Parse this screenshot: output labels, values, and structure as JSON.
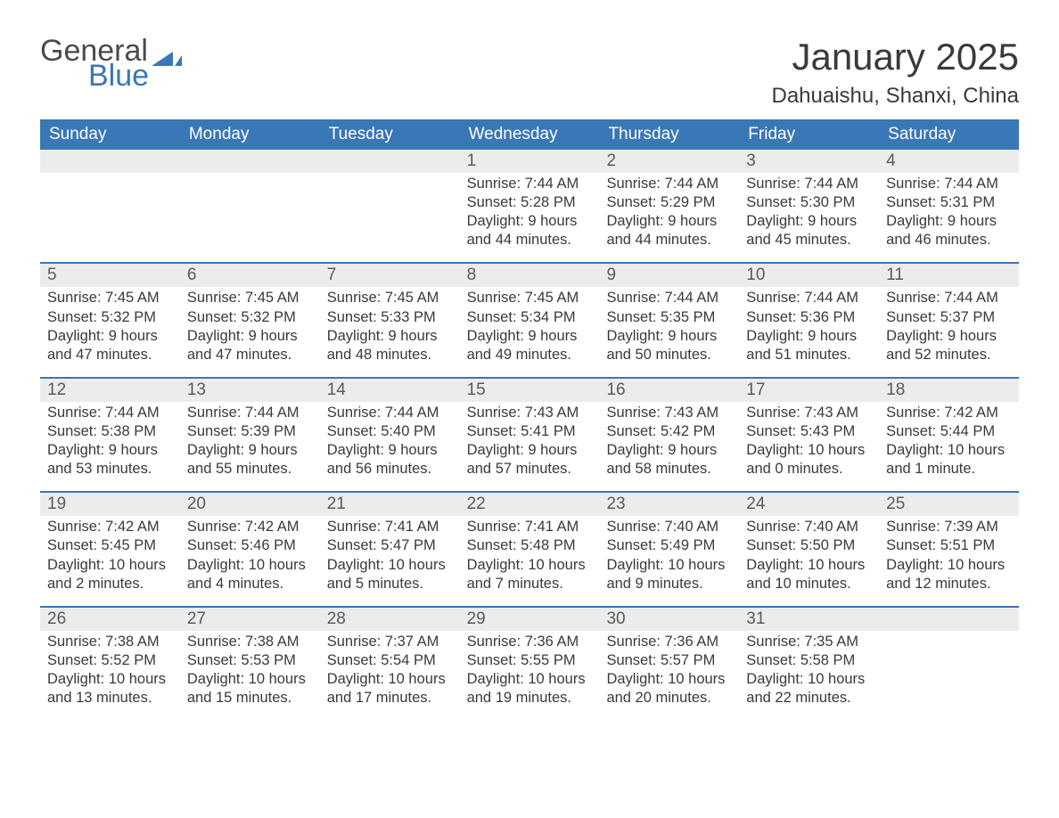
{
  "colors": {
    "brand_blue": "#3a77b6",
    "header_bg": "#3a77b6",
    "header_text": "#ffffff",
    "daynum_bg": "#ececec",
    "text": "#3a3a3a",
    "page_bg": "#ffffff"
  },
  "typography": {
    "title_fontsize": 42,
    "location_fontsize": 24,
    "weekday_fontsize": 19,
    "daynum_fontsize": 19,
    "body_fontsize": 16.5,
    "logo_fontsize": 34
  },
  "logo": {
    "line1": "General",
    "line2": "Blue"
  },
  "title": "January 2025",
  "location": "Dahuaishu, Shanxi, China",
  "weekdays": [
    "Sunday",
    "Monday",
    "Tuesday",
    "Wednesday",
    "Thursday",
    "Friday",
    "Saturday"
  ],
  "labels": {
    "sunrise": "Sunrise: ",
    "sunset": "Sunset: ",
    "daylight": "Daylight: "
  },
  "weeks": [
    [
      null,
      null,
      null,
      {
        "n": "1",
        "sr": "7:44 AM",
        "ss": "5:28 PM",
        "dl": "9 hours and 44 minutes."
      },
      {
        "n": "2",
        "sr": "7:44 AM",
        "ss": "5:29 PM",
        "dl": "9 hours and 44 minutes."
      },
      {
        "n": "3",
        "sr": "7:44 AM",
        "ss": "5:30 PM",
        "dl": "9 hours and 45 minutes."
      },
      {
        "n": "4",
        "sr": "7:44 AM",
        "ss": "5:31 PM",
        "dl": "9 hours and 46 minutes."
      }
    ],
    [
      {
        "n": "5",
        "sr": "7:45 AM",
        "ss": "5:32 PM",
        "dl": "9 hours and 47 minutes."
      },
      {
        "n": "6",
        "sr": "7:45 AM",
        "ss": "5:32 PM",
        "dl": "9 hours and 47 minutes."
      },
      {
        "n": "7",
        "sr": "7:45 AM",
        "ss": "5:33 PM",
        "dl": "9 hours and 48 minutes."
      },
      {
        "n": "8",
        "sr": "7:45 AM",
        "ss": "5:34 PM",
        "dl": "9 hours and 49 minutes."
      },
      {
        "n": "9",
        "sr": "7:44 AM",
        "ss": "5:35 PM",
        "dl": "9 hours and 50 minutes."
      },
      {
        "n": "10",
        "sr": "7:44 AM",
        "ss": "5:36 PM",
        "dl": "9 hours and 51 minutes."
      },
      {
        "n": "11",
        "sr": "7:44 AM",
        "ss": "5:37 PM",
        "dl": "9 hours and 52 minutes."
      }
    ],
    [
      {
        "n": "12",
        "sr": "7:44 AM",
        "ss": "5:38 PM",
        "dl": "9 hours and 53 minutes."
      },
      {
        "n": "13",
        "sr": "7:44 AM",
        "ss": "5:39 PM",
        "dl": "9 hours and 55 minutes."
      },
      {
        "n": "14",
        "sr": "7:44 AM",
        "ss": "5:40 PM",
        "dl": "9 hours and 56 minutes."
      },
      {
        "n": "15",
        "sr": "7:43 AM",
        "ss": "5:41 PM",
        "dl": "9 hours and 57 minutes."
      },
      {
        "n": "16",
        "sr": "7:43 AM",
        "ss": "5:42 PM",
        "dl": "9 hours and 58 minutes."
      },
      {
        "n": "17",
        "sr": "7:43 AM",
        "ss": "5:43 PM",
        "dl": "10 hours and 0 minutes."
      },
      {
        "n": "18",
        "sr": "7:42 AM",
        "ss": "5:44 PM",
        "dl": "10 hours and 1 minute."
      }
    ],
    [
      {
        "n": "19",
        "sr": "7:42 AM",
        "ss": "5:45 PM",
        "dl": "10 hours and 2 minutes."
      },
      {
        "n": "20",
        "sr": "7:42 AM",
        "ss": "5:46 PM",
        "dl": "10 hours and 4 minutes."
      },
      {
        "n": "21",
        "sr": "7:41 AM",
        "ss": "5:47 PM",
        "dl": "10 hours and 5 minutes."
      },
      {
        "n": "22",
        "sr": "7:41 AM",
        "ss": "5:48 PM",
        "dl": "10 hours and 7 minutes."
      },
      {
        "n": "23",
        "sr": "7:40 AM",
        "ss": "5:49 PM",
        "dl": "10 hours and 9 minutes."
      },
      {
        "n": "24",
        "sr": "7:40 AM",
        "ss": "5:50 PM",
        "dl": "10 hours and 10 minutes."
      },
      {
        "n": "25",
        "sr": "7:39 AM",
        "ss": "5:51 PM",
        "dl": "10 hours and 12 minutes."
      }
    ],
    [
      {
        "n": "26",
        "sr": "7:38 AM",
        "ss": "5:52 PM",
        "dl": "10 hours and 13 minutes."
      },
      {
        "n": "27",
        "sr": "7:38 AM",
        "ss": "5:53 PM",
        "dl": "10 hours and 15 minutes."
      },
      {
        "n": "28",
        "sr": "7:37 AM",
        "ss": "5:54 PM",
        "dl": "10 hours and 17 minutes."
      },
      {
        "n": "29",
        "sr": "7:36 AM",
        "ss": "5:55 PM",
        "dl": "10 hours and 19 minutes."
      },
      {
        "n": "30",
        "sr": "7:36 AM",
        "ss": "5:57 PM",
        "dl": "10 hours and 20 minutes."
      },
      {
        "n": "31",
        "sr": "7:35 AM",
        "ss": "5:58 PM",
        "dl": "10 hours and 22 minutes."
      },
      null
    ]
  ]
}
